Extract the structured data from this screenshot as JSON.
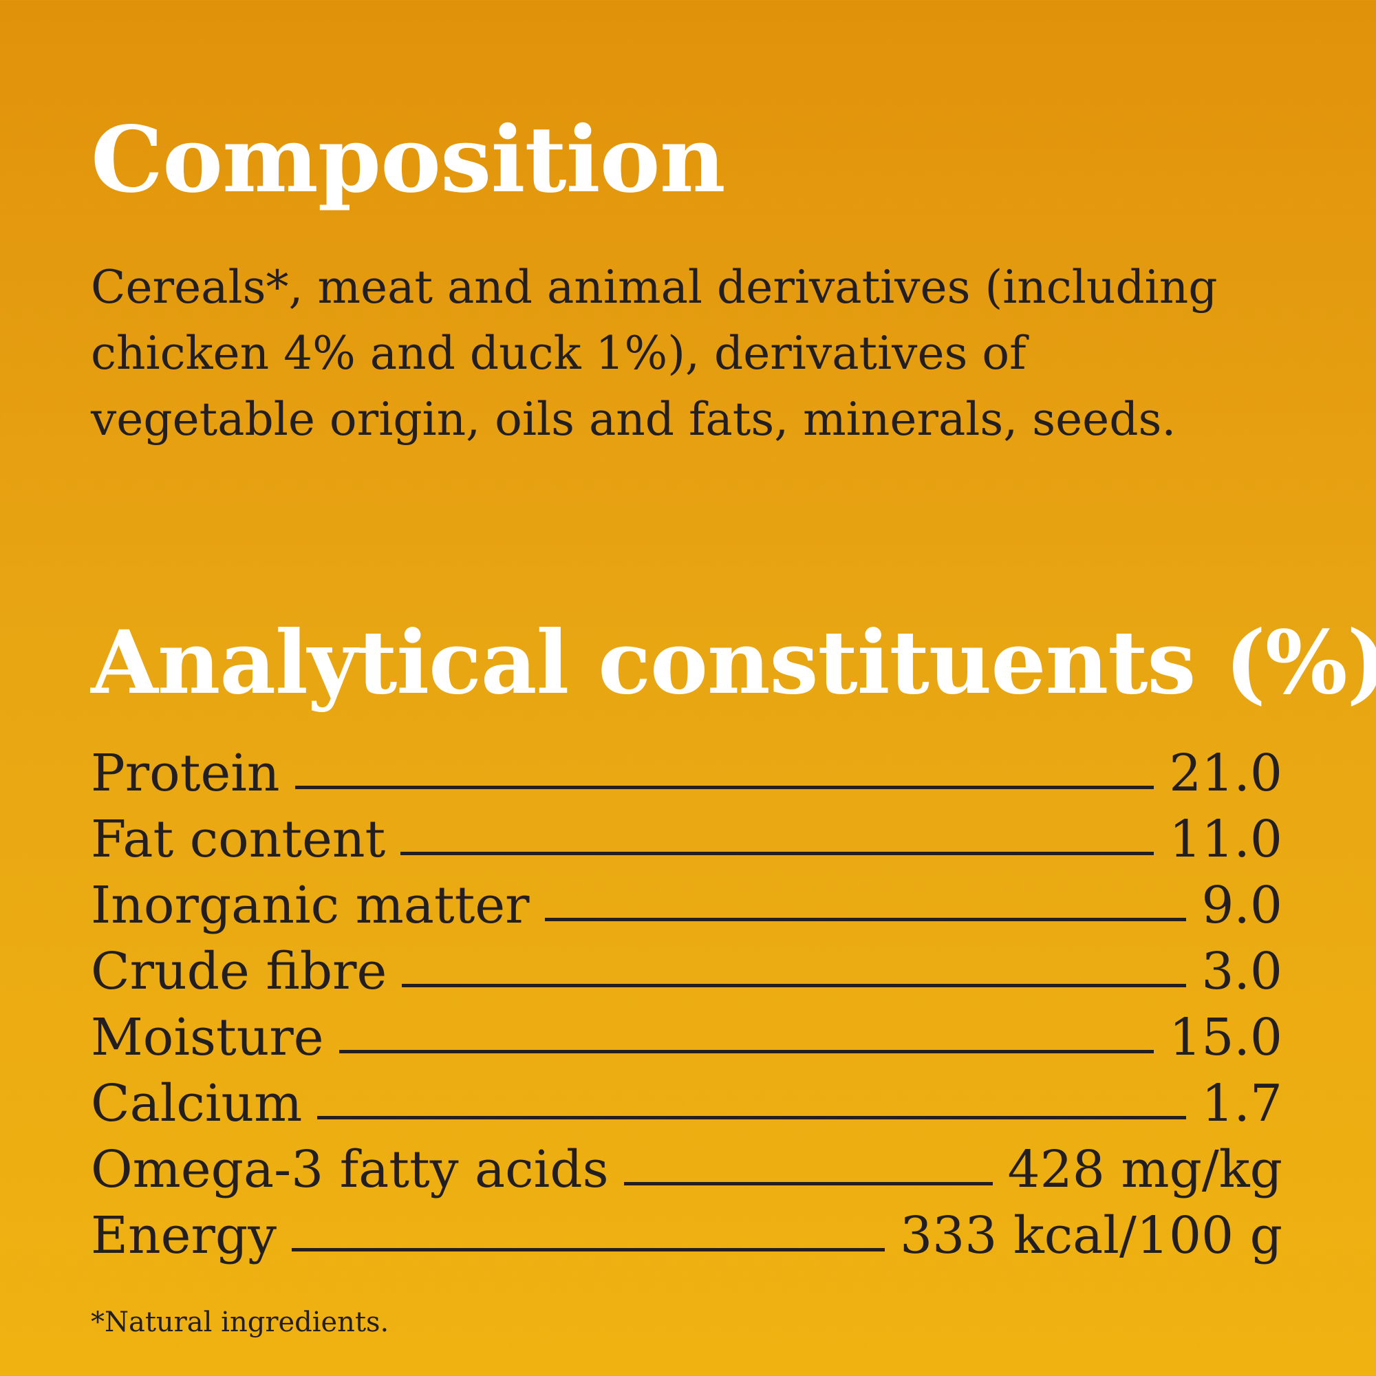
{
  "composition": {
    "title": "Composition",
    "text": "Cereals*, meat and animal derivatives (including\nchicken 4% and duck 1%), derivatives of\nvegetable origin, oils and fats, minerals, seeds."
  },
  "analytical": {
    "title": "Analytical constituents (%)",
    "rows": [
      {
        "label": "Protein",
        "value": "21.0"
      },
      {
        "label": "Fat content",
        "value": "11.0"
      },
      {
        "label": "Inorganic matter",
        "value": "9.0"
      },
      {
        "label": "Crude fibre",
        "value": "3.0"
      },
      {
        "label": "Moisture",
        "value": "15.0"
      },
      {
        "label": "Calcium",
        "value": "1.7"
      },
      {
        "label": "Omega-3 fatty acids",
        "value": "428 mg/kg"
      },
      {
        "label": "Energy",
        "value": "333 kcal/100 g"
      }
    ]
  },
  "footnote": "*Natural ingredients.",
  "colors": {
    "background_top": "#e1920b",
    "background_bottom": "#efb211",
    "heading": "#ffffff",
    "text": "#231f20"
  }
}
